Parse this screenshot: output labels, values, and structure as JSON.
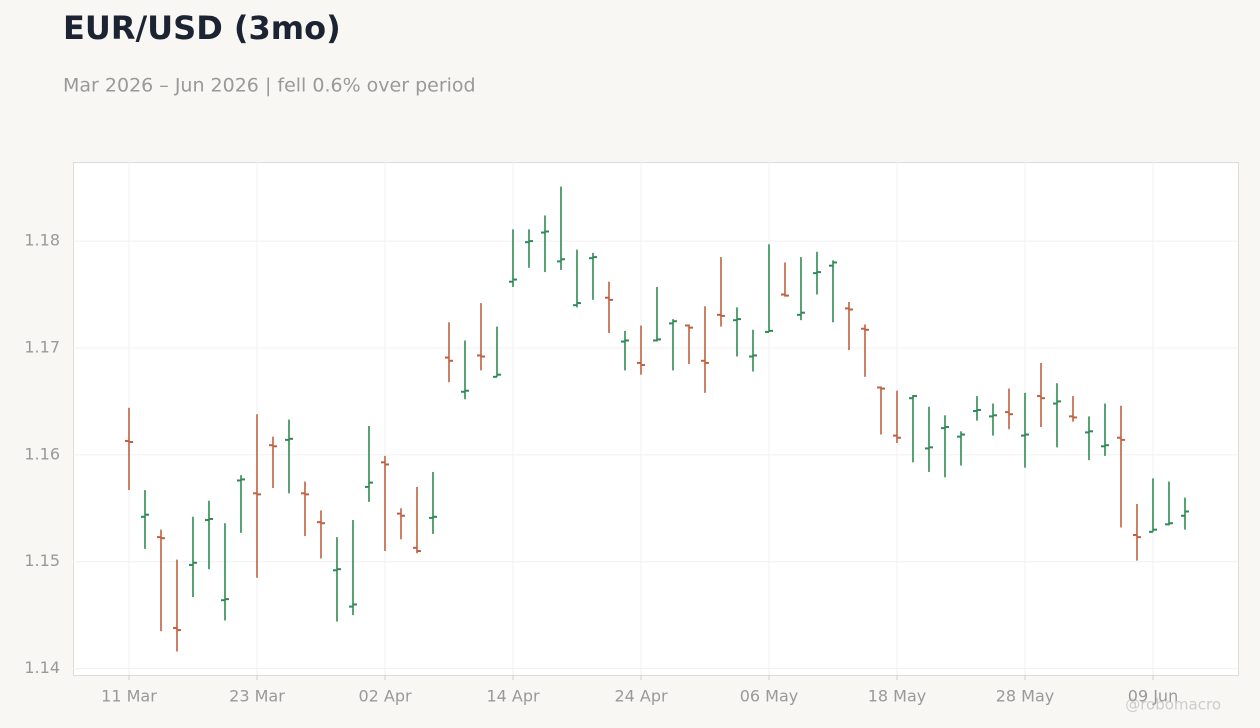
{
  "chart_data": {
    "type": "ohlc",
    "title": "EUR/USD (3mo)",
    "subtitle": "Mar 2026 – Jun 2026 | fell 0.6% over period",
    "watermark": "@robomacro",
    "up_color": "#2f8a55",
    "down_color": "#c0603f",
    "grid": true,
    "categories": [
      "11 Mar",
      null,
      null,
      null,
      null,
      null,
      null,
      null,
      "23 Mar",
      null,
      null,
      null,
      null,
      null,
      null,
      null,
      "02 Apr",
      null,
      null,
      null,
      null,
      null,
      null,
      null,
      "14 Apr",
      null,
      null,
      null,
      null,
      null,
      null,
      null,
      "24 Apr",
      null,
      null,
      null,
      null,
      null,
      null,
      null,
      "06 May",
      null,
      null,
      null,
      null,
      null,
      null,
      null,
      "18 May",
      null,
      null,
      null,
      null,
      null,
      null,
      null,
      "28 May",
      null,
      null,
      null,
      null,
      null,
      null,
      null,
      "09 Jun",
      null,
      null
    ],
    "open": [
      1.1613,
      1.1542,
      1.1523,
      1.1438,
      1.1497,
      1.1539,
      1.1464,
      1.1576,
      1.1564,
      1.1609,
      1.1614,
      1.1564,
      1.1537,
      1.1492,
      1.1458,
      1.157,
      1.1593,
      1.1545,
      1.1513,
      1.1541,
      1.1691,
      1.1659,
      1.1693,
      1.1673,
      1.1762,
      1.1799,
      1.1808,
      1.1781,
      1.174,
      1.1784,
      1.1747,
      1.1706,
      1.1686,
      1.1707,
      1.1723,
      1.1721,
      1.1688,
      1.1731,
      1.1726,
      1.1692,
      1.1715,
      1.175,
      1.1731,
      1.177,
      1.1777,
      1.1737,
      1.1718,
      1.1663,
      1.1618,
      1.1653,
      1.1606,
      1.1625,
      1.1617,
      1.1641,
      1.1636,
      1.164,
      1.1618,
      1.1655,
      1.1648,
      1.1636,
      1.1621,
      1.1608,
      1.1616,
      1.1525,
      1.1528,
      1.1535,
      1.1543
    ],
    "high": [
      1.1644,
      1.1567,
      1.153,
      1.1502,
      1.1542,
      1.1557,
      1.1536,
      1.1581,
      1.1638,
      1.1617,
      1.1633,
      1.1575,
      1.1548,
      1.1523,
      1.1539,
      1.1627,
      1.1599,
      1.155,
      1.157,
      1.1584,
      1.1724,
      1.1707,
      1.1742,
      1.172,
      1.1811,
      1.1811,
      1.1824,
      1.1851,
      1.1792,
      1.1789,
      1.1762,
      1.1716,
      1.1721,
      1.1757,
      1.1727,
      1.1722,
      1.1739,
      1.1785,
      1.1738,
      1.1717,
      1.1797,
      1.178,
      1.1785,
      1.179,
      1.1782,
      1.1743,
      1.1722,
      1.1664,
      1.166,
      1.1656,
      1.1645,
      1.1637,
      1.1622,
      1.1655,
      1.1648,
      1.1662,
      1.1658,
      1.1686,
      1.1667,
      1.1655,
      1.1636,
      1.1648,
      1.1646,
      1.1554,
      1.1578,
      1.1575,
      1.156
    ],
    "low": [
      1.1567,
      1.1512,
      1.1435,
      1.1416,
      1.1467,
      1.1493,
      1.1445,
      1.1527,
      1.1485,
      1.1569,
      1.1564,
      1.1524,
      1.1503,
      1.1444,
      1.145,
      1.1556,
      1.151,
      1.1521,
      1.1508,
      1.1526,
      1.1668,
      1.1652,
      1.1679,
      1.1673,
      1.1757,
      1.1775,
      1.1771,
      1.1773,
      1.1738,
      1.1745,
      1.1714,
      1.1679,
      1.1675,
      1.1706,
      1.1679,
      1.1685,
      1.1658,
      1.172,
      1.1692,
      1.1678,
      1.1715,
      1.1748,
      1.1726,
      1.175,
      1.1724,
      1.1698,
      1.1673,
      1.1619,
      1.1611,
      1.1593,
      1.1584,
      1.1579,
      1.159,
      1.1632,
      1.1618,
      1.1624,
      1.1588,
      1.1626,
      1.1607,
      1.1631,
      1.1595,
      1.1599,
      1.1532,
      1.1501,
      1.1528,
      1.1534,
      1.153
    ],
    "close": [
      1.1612,
      1.1544,
      1.1522,
      1.1436,
      1.1499,
      1.154,
      1.1465,
      1.1577,
      1.1563,
      1.1608,
      1.1615,
      1.1563,
      1.1536,
      1.1493,
      1.146,
      1.1574,
      1.1591,
      1.1543,
      1.151,
      1.1542,
      1.1688,
      1.166,
      1.1692,
      1.1675,
      1.1764,
      1.18,
      1.1809,
      1.1783,
      1.1742,
      1.1785,
      1.1745,
      1.1707,
      1.1684,
      1.1708,
      1.1725,
      1.1719,
      1.1686,
      1.173,
      1.1727,
      1.1693,
      1.1716,
      1.1749,
      1.1733,
      1.1771,
      1.178,
      1.1736,
      1.1717,
      1.1662,
      1.1616,
      1.1655,
      1.1607,
      1.1626,
      1.1619,
      1.1642,
      1.1637,
      1.1638,
      1.1619,
      1.1653,
      1.165,
      1.1635,
      1.1622,
      1.1609,
      1.1614,
      1.1523,
      1.153,
      1.1536,
      1.1547
    ],
    "ylim": [
      1.1394,
      1.1874
    ],
    "yticks": [
      {
        "value": 1.14,
        "label": "1.14"
      },
      {
        "value": 1.15,
        "label": "1.15"
      },
      {
        "value": 1.16,
        "label": "1.16"
      },
      {
        "value": 1.17,
        "label": "1.17"
      },
      {
        "value": 1.18,
        "label": "1.18"
      }
    ]
  }
}
